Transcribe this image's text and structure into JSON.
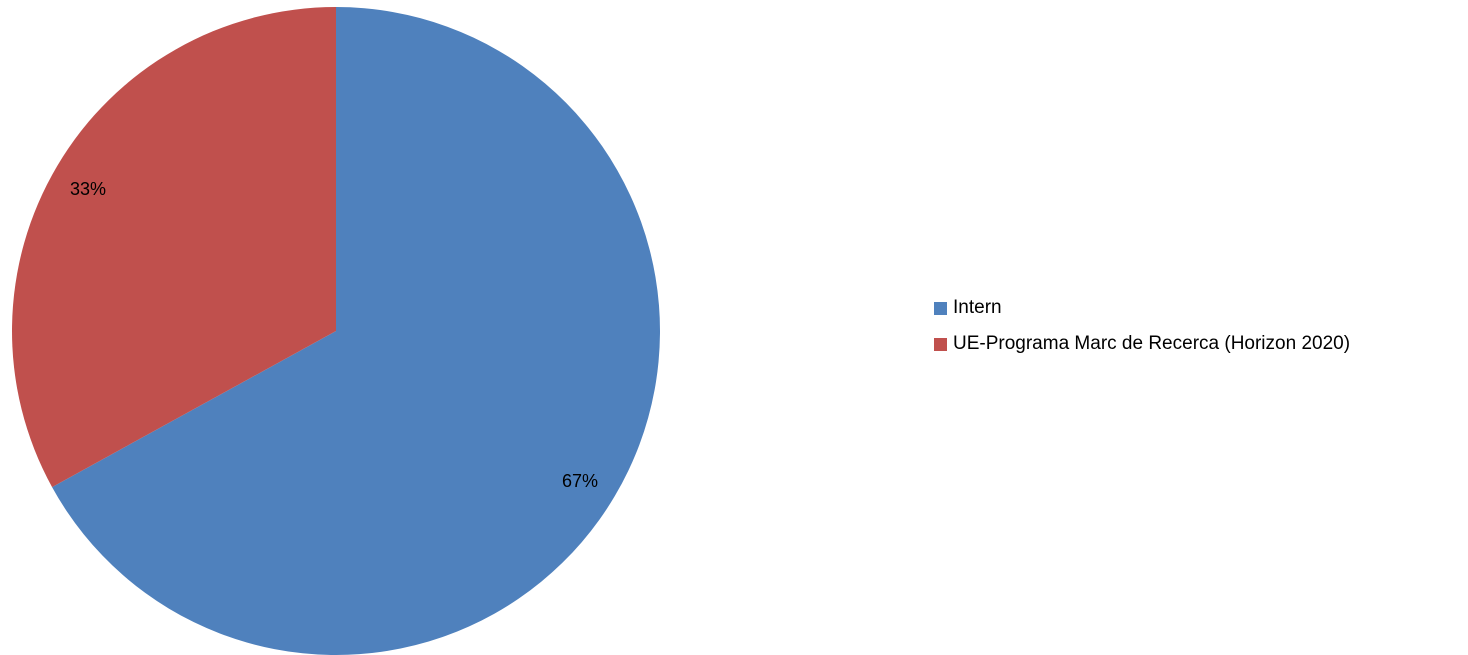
{
  "chart_data": {
    "type": "pie",
    "title": "",
    "slices": [
      {
        "name": "Intern",
        "value": 67,
        "label": "67%",
        "color": "#4F81BD"
      },
      {
        "name": "UE-Programa Marc de Recerca (Horizon 2020)",
        "value": 33,
        "label": "33%",
        "color": "#C0504D"
      }
    ],
    "start_angle_deg": 0,
    "direction": "clockwise",
    "legend_position": "right"
  }
}
